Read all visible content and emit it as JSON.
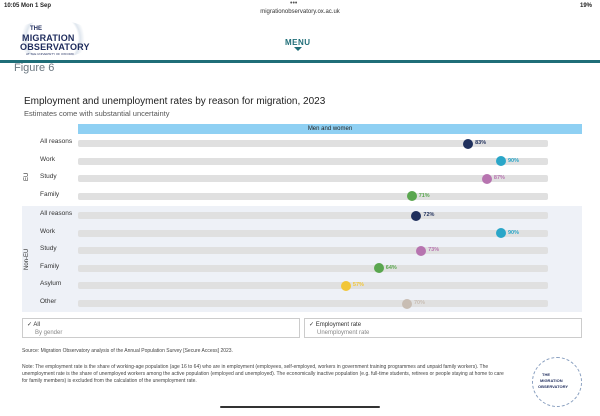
{
  "status": {
    "time": "10:05  Mon 1 Sep",
    "url": "migrationobservatory.ox.ac.uk",
    "battery": "19%"
  },
  "logo": {
    "line1": "THE",
    "line2": "MIGRATION",
    "line3": "OBSERVATORY",
    "line4": "AT THE UNIVERSITY OF OXFORD"
  },
  "header": {
    "menu": "MENU"
  },
  "figure_label": "Figure 6",
  "chart_title": "Employment and unemployment rates by reason for migration, 2023",
  "chart_subtitle": "Estimates come with substantial uncertainty",
  "chart_data": {
    "type": "dot",
    "facet": "Men and women",
    "xlim": [
      0,
      100
    ],
    "groups": [
      {
        "name": "EU",
        "rows": [
          {
            "label": "All reasons",
            "value": 83,
            "text": "83%",
            "color": "#1f2f5c"
          },
          {
            "label": "Work",
            "value": 90,
            "text": "90%",
            "color": "#2aa6c8"
          },
          {
            "label": "Study",
            "value": 87,
            "text": "87%",
            "color": "#b774b0"
          },
          {
            "label": "Family",
            "value": 71,
            "text": "71%",
            "color": "#5aa64f"
          }
        ]
      },
      {
        "name": "Non-EU",
        "rows": [
          {
            "label": "All reasons",
            "value": 72,
            "text": "72%",
            "color": "#1f2f5c"
          },
          {
            "label": "Work",
            "value": 90,
            "text": "90%",
            "color": "#2aa6c8"
          },
          {
            "label": "Study",
            "value": 73,
            "text": "73%",
            "color": "#b774b0"
          },
          {
            "label": "Family",
            "value": 64,
            "text": "64%",
            "color": "#5aa64f"
          },
          {
            "label": "Asylum",
            "value": 57,
            "text": "57%",
            "color": "#f2c637"
          },
          {
            "label": "Other",
            "value": 70,
            "text": "70%",
            "color": "#c8bdb3"
          }
        ]
      }
    ]
  },
  "controls": {
    "left_line1": "✓ All",
    "left_line2": "By gender",
    "right_line1": "✓ Employment rate",
    "right_line2": "Unemployment rate"
  },
  "source": "Source: Migration Observatory analysis of the Annual Population Survey [Secure Access] 2023.",
  "note": "Note: The employment rate is the share of working-age population (age 16 to 64) who are in employment (employees, self-employed, workers in government training programmes and unpaid family workers). The unemployment rate is the share of unemployed workers among the active population (employed and unemployed). The economically inactive population (e.g. full-time students, retirees or people staying at home to care for family members) is excluded from the calculation of the unemployment rate.",
  "seal": {
    "l1": "THE",
    "l2": "MIGRATION",
    "l3": "OBSERVATORY"
  }
}
